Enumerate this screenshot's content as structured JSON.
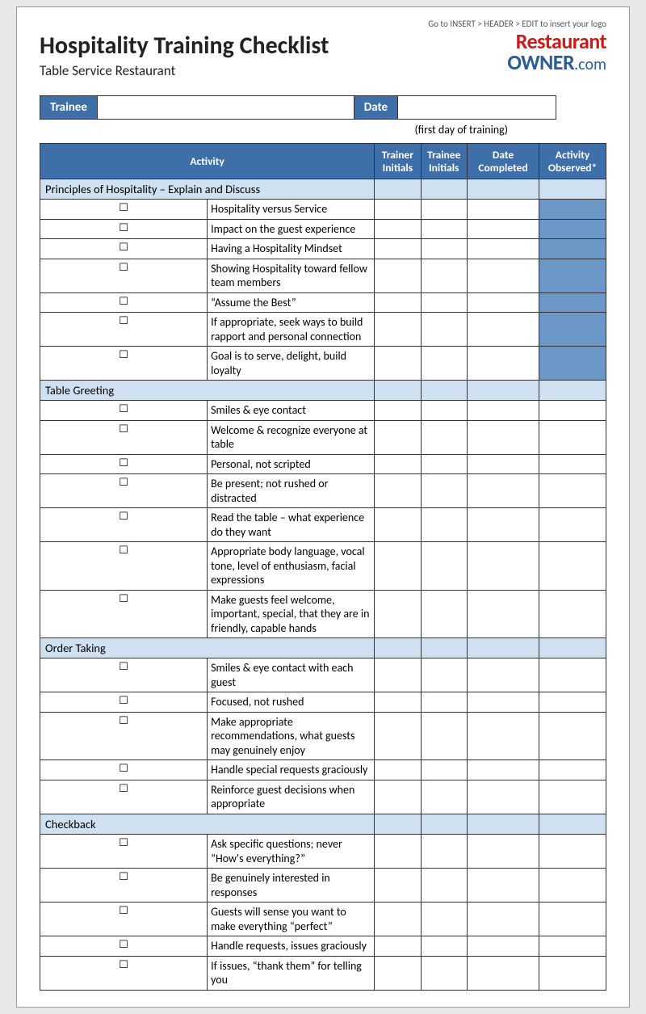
{
  "top_hint": "Go to INSERT > HEADER > EDIT to insert your logo",
  "title": "Hospitality Training Checklist",
  "subtitle": "Table Service Restaurant",
  "logo": {
    "line1": "Restaurant",
    "line2a": "OWNER",
    "line2b": ".com"
  },
  "meta": {
    "trainee_label": "Trainee",
    "date_label": "Date",
    "first_day": "(first day of training)"
  },
  "columns": {
    "activity": "Activity",
    "trainer": "Trainer Initials",
    "trainee": "Trainee Initials",
    "date_completed": "Date Completed",
    "observed": "Activity Observed*"
  },
  "colors": {
    "header_blue": "#3f6fa8",
    "section_blue": "#cfe0f0",
    "observed_fill": "#6b97c6"
  },
  "sections": [
    {
      "title": "Principles of Hospitality – Explain and Discuss",
      "observed_fill": true,
      "items": [
        "Hospitality versus Service",
        "Impact on the guest experience",
        "Having a Hospitality Mindset",
        "Showing Hospitality toward fellow team members",
        "“Assume the Best”",
        "If appropriate, seek ways to build rapport and personal connection",
        "Goal is to serve, delight, build loyalty"
      ]
    },
    {
      "title": "Table Greeting",
      "observed_fill": false,
      "items": [
        "Smiles & eye contact",
        "Welcome & recognize everyone at table",
        "Personal, not scripted",
        "Be present; not rushed or distracted",
        "Read the table – what experience do they want",
        "Appropriate body language, vocal tone, level of enthusiasm, facial expressions",
        "Make guests feel welcome, important, special, that they are in friendly, capable hands"
      ]
    },
    {
      "title": "Order Taking",
      "observed_fill": false,
      "items": [
        "Smiles & eye contact with each guest",
        "Focused, not rushed",
        "Make appropriate recommendations, what guests may genuinely enjoy",
        "Handle special requests graciously",
        "Reinforce guest decisions when appropriate"
      ]
    },
    {
      "title": "Checkback",
      "observed_fill": false,
      "items": [
        "Ask specific questions; never “How's everything?”",
        "Be genuinely interested in responses",
        "Guests will sense you want to make everything “perfect”",
        "Handle requests, issues graciously",
        "If issues, “thank them” for telling you"
      ]
    }
  ]
}
